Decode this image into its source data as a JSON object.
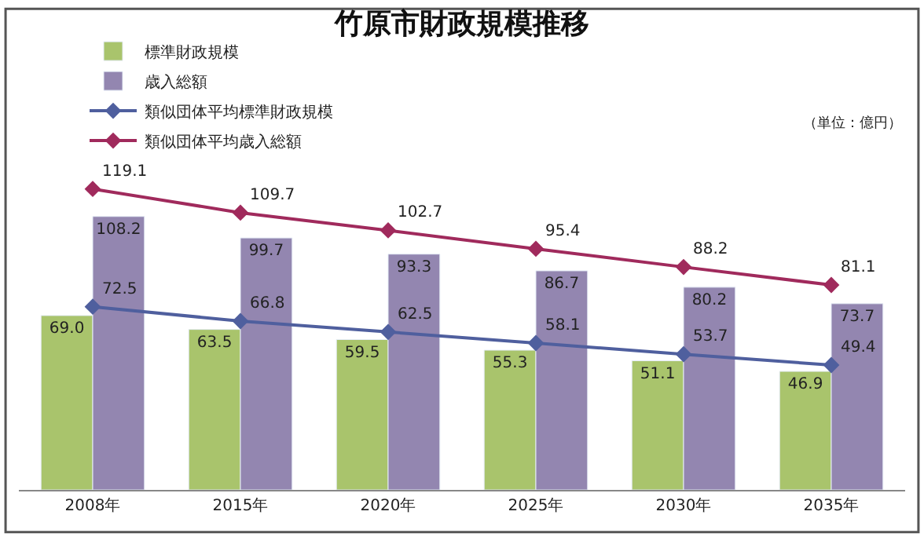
{
  "chart_data": {
    "type": "bar",
    "title": "竹原市財政規模推移",
    "annotations": [
      "（単位：億円）"
    ],
    "categories": [
      "2008年",
      "2015年",
      "2020年",
      "2025年",
      "2030年",
      "2035年"
    ],
    "series": [
      {
        "name": "標準財政規模",
        "color": "#a9c46c",
        "values": [
          69.0,
          63.5,
          59.5,
          55.3,
          51.1,
          46.9
        ],
        "value_labels": [
          "69.0",
          "63.5",
          "59.5",
          "55.3",
          "51.1",
          "46.9"
        ]
      },
      {
        "name": "歳入総額",
        "color": "#9386b0",
        "values": [
          108.2,
          99.7,
          93.3,
          86.7,
          80.2,
          73.7
        ],
        "value_labels": [
          "108.2",
          "99.7",
          "93.3",
          "86.7",
          "80.2",
          "73.7"
        ]
      },
      {
        "name": "類似団体平均標準財政規模",
        "type": "line",
        "color": "#4f5f9e",
        "values": [
          72.5,
          66.8,
          62.5,
          58.1,
          53.7,
          49.4
        ],
        "value_labels": [
          "72.5",
          "66.8",
          "62.5",
          "58.1",
          "53.7",
          "49.4"
        ]
      },
      {
        "name": "類似団体平均歳入総額",
        "type": "line",
        "color": "#a02a5c",
        "values": [
          119.1,
          109.7,
          102.7,
          95.4,
          88.2,
          81.1
        ],
        "value_labels": [
          "119.1",
          "109.7",
          "102.7",
          "95.4",
          "88.2",
          "81.1"
        ]
      }
    ],
    "legend": "top",
    "marker": "diamond",
    "line_style": "solid",
    "tick_labels": "x"
  }
}
